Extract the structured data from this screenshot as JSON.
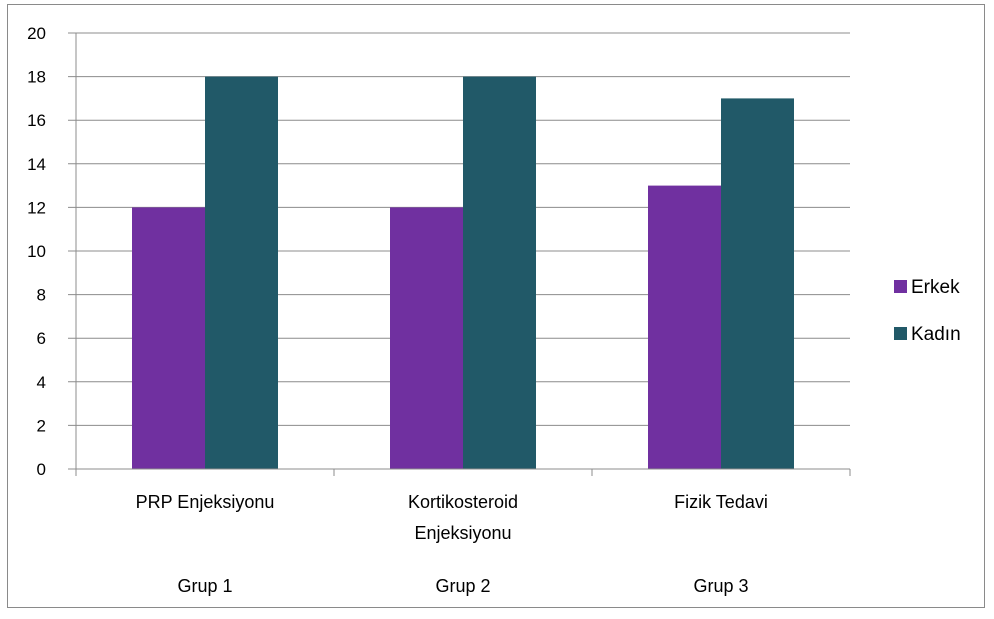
{
  "chart_data": {
    "type": "bar",
    "categories": [
      "PRP Enjeksiyonu",
      "Kortikosteroid Enjeksiyonu",
      "Fizik Tedavi"
    ],
    "category_lines": [
      [
        "PRP Enjeksiyonu"
      ],
      [
        "Kortikosteroid",
        "Enjeksiyonu"
      ],
      [
        "Fizik Tedavi"
      ]
    ],
    "groups": [
      "Grup 1",
      "Grup 2",
      "Grup 3"
    ],
    "series": [
      {
        "name": "Erkek",
        "values": [
          12,
          12,
          13
        ],
        "color": "#7030a0"
      },
      {
        "name": "Kadın",
        "values": [
          18,
          18,
          17
        ],
        "color": "#215968"
      }
    ],
    "ylim": [
      0,
      20
    ],
    "yticks": [
      0,
      2,
      4,
      6,
      8,
      10,
      12,
      14,
      16,
      18,
      20
    ],
    "grid": true,
    "legend_position": "right"
  }
}
